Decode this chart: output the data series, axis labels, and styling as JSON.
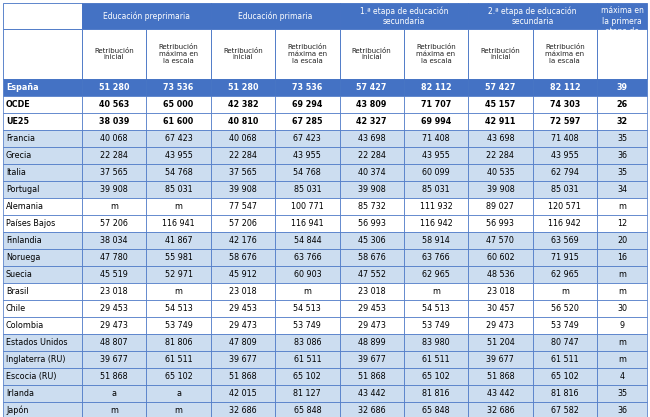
{
  "col_groups": [
    {
      "label": "Educación preprimaria"
    },
    {
      "label": "Educación primaria"
    },
    {
      "label": "1.ª etapa de educación\nsecundaria"
    },
    {
      "label": "2.ª etapa de educación\nsecundaria"
    },
    {
      "label": "Años para\nalcanzar la\nretribución\nmáxima en\nla primera\netapa de\neducación\nsecundaria"
    }
  ],
  "sub_headers": [
    "Retribución\ninicial",
    "Retribución\nmáxima en\nla escala",
    "Retribución\ninicial",
    "Retribución\nmáxima en\nla escala",
    "Retribución\ninicial",
    "Retribución\nmáxima en\nla escala",
    "Retribución\ninicial",
    "Retribución\nmáxima en\nla escala"
  ],
  "rows": [
    {
      "name": "España",
      "vals": [
        "51 280",
        "73 536",
        "51 280",
        "73 536",
        "57 427",
        "82 112",
        "57 427",
        "82 112",
        "39"
      ],
      "highlight": true,
      "bold": true,
      "alt": true
    },
    {
      "name": "OCDE",
      "vals": [
        "40 563",
        "65 000",
        "42 382",
        "69 294",
        "43 809",
        "71 707",
        "45 157",
        "74 303",
        "26"
      ],
      "highlight": false,
      "bold": true,
      "alt": false
    },
    {
      "name": "UE25",
      "vals": [
        "38 039",
        "61 600",
        "40 810",
        "67 285",
        "42 327",
        "69 994",
        "42 911",
        "72 597",
        "32"
      ],
      "highlight": false,
      "bold": true,
      "alt": false
    },
    {
      "name": "Francia",
      "vals": [
        "40 068",
        "67 423",
        "40 068",
        "67 423",
        "43 698",
        "71 408",
        "43 698",
        "71 408",
        "35"
      ],
      "highlight": false,
      "bold": false,
      "alt": true
    },
    {
      "name": "Grecia",
      "vals": [
        "22 284",
        "43 955",
        "22 284",
        "43 955",
        "22 284",
        "43 955",
        "22 284",
        "43 955",
        "36"
      ],
      "highlight": false,
      "bold": false,
      "alt": true
    },
    {
      "name": "Italia",
      "vals": [
        "37 565",
        "54 768",
        "37 565",
        "54 768",
        "40 374",
        "60 099",
        "40 535",
        "62 794",
        "35"
      ],
      "highlight": false,
      "bold": false,
      "alt": true
    },
    {
      "name": "Portugal",
      "vals": [
        "39 908",
        "85 031",
        "39 908",
        "85 031",
        "39 908",
        "85 031",
        "39 908",
        "85 031",
        "34"
      ],
      "highlight": false,
      "bold": false,
      "alt": true
    },
    {
      "name": "Alemania",
      "vals": [
        "m",
        "m",
        "77 547",
        "100 771",
        "85 732",
        "111 932",
        "89 027",
        "120 571",
        "m"
      ],
      "highlight": false,
      "bold": false,
      "alt": false
    },
    {
      "name": "Países Bajos",
      "vals": [
        "57 206",
        "116 941",
        "57 206",
        "116 941",
        "56 993",
        "116 942",
        "56 993",
        "116 942",
        "12"
      ],
      "highlight": false,
      "bold": false,
      "alt": false
    },
    {
      "name": "Finlandia",
      "vals": [
        "38 034",
        "41 867",
        "42 176",
        "54 844",
        "45 306",
        "58 914",
        "47 570",
        "63 569",
        "20"
      ],
      "highlight": false,
      "bold": false,
      "alt": true
    },
    {
      "name": "Noruega",
      "vals": [
        "47 780",
        "55 981",
        "58 676",
        "63 766",
        "58 676",
        "63 766",
        "60 602",
        "71 915",
        "16"
      ],
      "highlight": false,
      "bold": false,
      "alt": true
    },
    {
      "name": "Suecia",
      "vals": [
        "45 519",
        "52 971",
        "45 912",
        "60 903",
        "47 552",
        "62 965",
        "48 536",
        "62 965",
        "m"
      ],
      "highlight": false,
      "bold": false,
      "alt": true
    },
    {
      "name": "Brasil",
      "vals": [
        "23 018",
        "m",
        "23 018",
        "m",
        "23 018",
        "m",
        "23 018",
        "m",
        "m"
      ],
      "highlight": false,
      "bold": false,
      "alt": false
    },
    {
      "name": "Chile",
      "vals": [
        "29 453",
        "54 513",
        "29 453",
        "54 513",
        "29 453",
        "54 513",
        "30 457",
        "56 520",
        "30"
      ],
      "highlight": false,
      "bold": false,
      "alt": false
    },
    {
      "name": "Colombia",
      "vals": [
        "29 473",
        "53 749",
        "29 473",
        "53 749",
        "29 473",
        "53 749",
        "29 473",
        "53 749",
        "9"
      ],
      "highlight": false,
      "bold": false,
      "alt": false
    },
    {
      "name": "Estados Unidos",
      "vals": [
        "48 807",
        "81 806",
        "47 809",
        "83 086",
        "48 899",
        "83 980",
        "51 204",
        "80 747",
        "m"
      ],
      "highlight": false,
      "bold": false,
      "alt": true
    },
    {
      "name": "Inglaterra (RU)",
      "vals": [
        "39 677",
        "61 511",
        "39 677",
        "61 511",
        "39 677",
        "61 511",
        "39 677",
        "61 511",
        "m"
      ],
      "highlight": false,
      "bold": false,
      "alt": true
    },
    {
      "name": "Escocia (RU)",
      "vals": [
        "51 868",
        "65 102",
        "51 868",
        "65 102",
        "51 868",
        "65 102",
        "51 868",
        "65 102",
        "4"
      ],
      "highlight": false,
      "bold": false,
      "alt": true
    },
    {
      "name": "Irlanda",
      "vals": [
        "a",
        "a",
        "42 015",
        "81 127",
        "43 442",
        "81 816",
        "43 442",
        "81 816",
        "35"
      ],
      "highlight": false,
      "bold": false,
      "alt": true
    },
    {
      "name": "Japón",
      "vals": [
        "m",
        "m",
        "32 686",
        "65 848",
        "32 686",
        "65 848",
        "32 686",
        "67 582",
        "36"
      ],
      "highlight": false,
      "bold": false,
      "alt": true
    }
  ],
  "color_header_bg": "#4472C4",
  "color_header_text": "#FFFFFF",
  "color_row_alt": "#CCDDF0",
  "color_row_white": "#FFFFFF",
  "color_border": "#4472C4",
  "figw": 6.5,
  "figh": 4.17,
  "dpi": 100
}
